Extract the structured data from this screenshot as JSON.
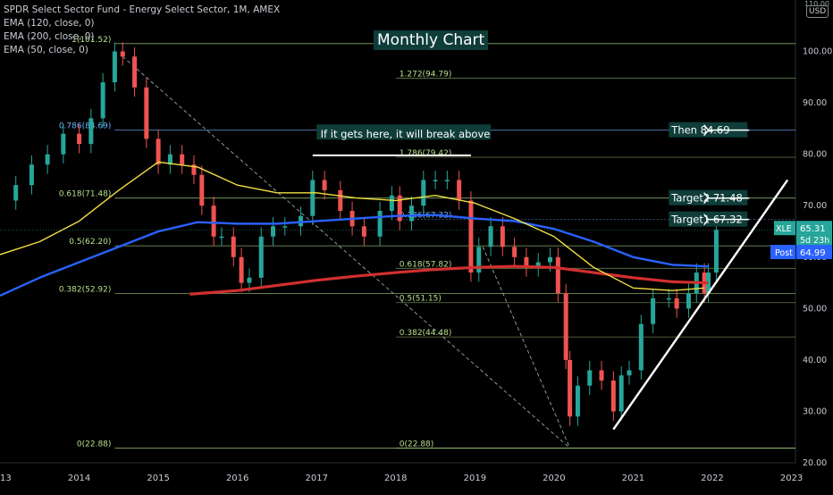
{
  "legend": {
    "symbol": "SPDR Select Sector Fund - Energy Select Sector, 1M, AMEX",
    "ema120": "EMA (120, close, 0)",
    "ema200": "EMA (200, close, 0)",
    "ema50": "EMA (50, close, 0)"
  },
  "currency": "USD",
  "currency_top": "110.00",
  "colors": {
    "up": "#26a69a",
    "down": "#ef5350",
    "ema50": "#f0e040",
    "ema120": "#2962ff",
    "ema200": "#d32f2f",
    "fib": "#b5e08a",
    "fib_blue": "#6fb3ff",
    "bg": "#000000"
  },
  "chart_data": {
    "type": "candlestick",
    "title": "Monthly Chart",
    "ylim": [
      20,
      110
    ],
    "y_ticks": [
      20,
      30,
      40,
      50,
      60,
      70,
      80,
      90,
      100
    ],
    "y_tick_labels": [
      "20.00",
      "30.00",
      "40.00",
      "50.00",
      "60.00",
      "70.00",
      "80.00",
      "90.00",
      "100.00"
    ],
    "x_ticks": [
      2013,
      2014,
      2015,
      2016,
      2017,
      2018,
      2019,
      2020,
      2021,
      2022,
      2023
    ],
    "x_tick_labels": [
      "2013",
      "2014",
      "2015",
      "2016",
      "2017",
      "2018",
      "2019",
      "2020",
      "2021",
      "2022",
      "2023"
    ],
    "xlim": [
      2013.0,
      2023.05
    ],
    "close_path": [
      [
        2013.0,
        71
      ],
      [
        2013.2,
        74
      ],
      [
        2013.4,
        78
      ],
      [
        2013.6,
        80
      ],
      [
        2013.8,
        84
      ],
      [
        2014.0,
        82
      ],
      [
        2014.15,
        87
      ],
      [
        2014.3,
        94
      ],
      [
        2014.45,
        100
      ],
      [
        2014.55,
        99
      ],
      [
        2014.7,
        93
      ],
      [
        2014.85,
        83
      ],
      [
        2015.0,
        78
      ],
      [
        2015.15,
        80
      ],
      [
        2015.3,
        78
      ],
      [
        2015.45,
        76
      ],
      [
        2015.55,
        70
      ],
      [
        2015.7,
        64
      ],
      [
        2015.8,
        64
      ],
      [
        2015.95,
        60
      ],
      [
        2016.05,
        55
      ],
      [
        2016.15,
        56
      ],
      [
        2016.3,
        64
      ],
      [
        2016.45,
        66
      ],
      [
        2016.6,
        66
      ],
      [
        2016.8,
        68
      ],
      [
        2016.95,
        75
      ],
      [
        2017.1,
        73
      ],
      [
        2017.3,
        69
      ],
      [
        2017.45,
        66
      ],
      [
        2017.6,
        64
      ],
      [
        2017.8,
        69
      ],
      [
        2017.95,
        72
      ],
      [
        2018.05,
        67
      ],
      [
        2018.2,
        70
      ],
      [
        2018.35,
        75
      ],
      [
        2018.5,
        75
      ],
      [
        2018.65,
        75
      ],
      [
        2018.8,
        71
      ],
      [
        2018.95,
        57
      ],
      [
        2019.05,
        62
      ],
      [
        2019.2,
        66
      ],
      [
        2019.35,
        62
      ],
      [
        2019.5,
        60
      ],
      [
        2019.65,
        58
      ],
      [
        2019.8,
        59
      ],
      [
        2019.95,
        60
      ],
      [
        2020.05,
        53
      ],
      [
        2020.15,
        40
      ],
      [
        2020.2,
        29
      ],
      [
        2020.3,
        35
      ],
      [
        2020.45,
        38
      ],
      [
        2020.6,
        36
      ],
      [
        2020.75,
        30
      ],
      [
        2020.85,
        37
      ],
      [
        2020.95,
        38
      ],
      [
        2021.1,
        47
      ],
      [
        2021.25,
        52
      ],
      [
        2021.45,
        52
      ],
      [
        2021.55,
        50
      ],
      [
        2021.7,
        53
      ],
      [
        2021.8,
        57
      ],
      [
        2021.9,
        53
      ],
      [
        2021.95,
        57
      ],
      [
        2022.05,
        65.31
      ]
    ],
    "ema50_path": [
      [
        2013.0,
        60.5
      ],
      [
        2013.5,
        63
      ],
      [
        2014.0,
        67
      ],
      [
        2014.5,
        73
      ],
      [
        2015.0,
        78.5
      ],
      [
        2015.5,
        77.5
      ],
      [
        2016.0,
        74
      ],
      [
        2016.5,
        72.5
      ],
      [
        2017.0,
        72.5
      ],
      [
        2017.5,
        71.5
      ],
      [
        2018.0,
        71
      ],
      [
        2018.5,
        72
      ],
      [
        2019.0,
        70.5
      ],
      [
        2019.5,
        67.5
      ],
      [
        2020.0,
        64
      ],
      [
        2020.5,
        58
      ],
      [
        2021.0,
        54
      ],
      [
        2021.5,
        53.5
      ],
      [
        2021.9,
        54
      ]
    ],
    "ema120_path": [
      [
        2013.0,
        52.5
      ],
      [
        2013.5,
        56
      ],
      [
        2014.0,
        59
      ],
      [
        2014.5,
        62
      ],
      [
        2015.0,
        65
      ],
      [
        2015.5,
        66.8
      ],
      [
        2016.0,
        66.5
      ],
      [
        2016.5,
        66.5
      ],
      [
        2017.0,
        67
      ],
      [
        2017.5,
        67.5
      ],
      [
        2018.0,
        68
      ],
      [
        2018.5,
        68.2
      ],
      [
        2019.0,
        67.5
      ],
      [
        2019.5,
        67
      ],
      [
        2020.0,
        65.5
      ],
      [
        2020.5,
        63
      ],
      [
        2021.0,
        60
      ],
      [
        2021.5,
        58.5
      ],
      [
        2021.95,
        58.2
      ]
    ],
    "ema200_path": [
      [
        2015.4,
        52.8
      ],
      [
        2016.0,
        53.5
      ],
      [
        2016.5,
        54.5
      ],
      [
        2017.0,
        55.5
      ],
      [
        2017.5,
        56.3
      ],
      [
        2018.0,
        57
      ],
      [
        2018.5,
        57.6
      ],
      [
        2019.0,
        58
      ],
      [
        2019.5,
        58.2
      ],
      [
        2020.0,
        58
      ],
      [
        2020.5,
        57
      ],
      [
        2021.0,
        56
      ],
      [
        2021.5,
        55.2
      ],
      [
        2021.95,
        55
      ]
    ],
    "fib_left": [
      {
        "label": "1(101.52)",
        "value": 101.52
      },
      {
        "label": "0.786(84.69)",
        "value": 84.69
      },
      {
        "label": "0.618(71.48)",
        "value": 71.48
      },
      {
        "label": "0.5(62.20)",
        "value": 62.2
      },
      {
        "label": "0.382(52.92)",
        "value": 52.92
      },
      {
        "label": "0(22.88)",
        "value": 22.88
      }
    ],
    "fib_right": [
      {
        "label": "1.272(94.79)",
        "value": 94.79
      },
      {
        "label": "1.786(79.42)",
        "value": 79.42
      },
      {
        "label": "0.786(67.32)",
        "value": 67.32
      },
      {
        "label": "0.618(57.82)",
        "value": 57.82
      },
      {
        "label": "0.5(51.15)",
        "value": 51.15
      },
      {
        "label": "0.382(44.48)",
        "value": 44.48
      },
      {
        "label": "0(22.88)",
        "value": 22.88
      }
    ],
    "annotations": {
      "break_text": "If it gets here, it will break above",
      "then_label": "Then 84.69",
      "target2_label": "Target2 71.48",
      "target1_label": "Target1 67.32"
    },
    "price_tags": {
      "xle_symbol": "XLE",
      "xle_price": "65.31",
      "xle_time": "5d 23h",
      "post_label": "Post",
      "post_price": "64.99"
    }
  }
}
